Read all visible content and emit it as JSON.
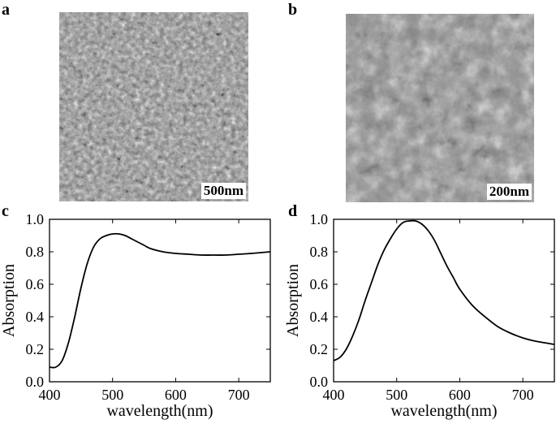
{
  "figure": {
    "panels": [
      {
        "letter": "a",
        "scale_label": "500nm"
      },
      {
        "letter": "b",
        "scale_label": "200nm"
      },
      {
        "letter": "c"
      },
      {
        "letter": "d"
      }
    ]
  },
  "chart_data": [
    {
      "type": "line",
      "panel": "c",
      "xlabel": "wavelength(nm)",
      "ylabel": "Absorption",
      "xlim": [
        400,
        750
      ],
      "ylim": [
        0.0,
        1.0
      ],
      "xticks": [
        400,
        500,
        600,
        700
      ],
      "yticks": [
        0.0,
        0.2,
        0.4,
        0.6,
        0.8,
        1.0
      ],
      "ytick_labels": [
        "0.0",
        "0.2",
        "0.4",
        "0.6",
        "0.8",
        "1.0"
      ],
      "grid": false,
      "series": [
        {
          "x": [
            400,
            410,
            420,
            430,
            440,
            450,
            460,
            470,
            480,
            490,
            500,
            510,
            520,
            530,
            540,
            550,
            560,
            580,
            600,
            620,
            640,
            660,
            680,
            700,
            720,
            750
          ],
          "y": [
            0.09,
            0.09,
            0.13,
            0.24,
            0.4,
            0.58,
            0.73,
            0.83,
            0.88,
            0.9,
            0.91,
            0.91,
            0.9,
            0.88,
            0.86,
            0.84,
            0.82,
            0.8,
            0.79,
            0.785,
            0.78,
            0.78,
            0.78,
            0.785,
            0.79,
            0.8
          ]
        }
      ]
    },
    {
      "type": "line",
      "panel": "d",
      "xlabel": "wavelength(nm)",
      "ylabel": "Absorption",
      "xlim": [
        400,
        750
      ],
      "ylim": [
        0.0,
        1.0
      ],
      "xticks": [
        400,
        500,
        600,
        700
      ],
      "yticks": [
        0.0,
        0.2,
        0.4,
        0.6,
        0.8,
        1.0
      ],
      "ytick_labels": [
        "0.0",
        "0.2",
        "0.4",
        "0.6",
        "0.8",
        "1.0"
      ],
      "grid": false,
      "series": [
        {
          "x": [
            400,
            410,
            420,
            430,
            440,
            450,
            460,
            470,
            480,
            490,
            500,
            510,
            520,
            530,
            540,
            550,
            560,
            570,
            580,
            590,
            600,
            620,
            640,
            660,
            680,
            700,
            720,
            750
          ],
          "y": [
            0.13,
            0.15,
            0.2,
            0.28,
            0.38,
            0.5,
            0.61,
            0.72,
            0.81,
            0.88,
            0.94,
            0.98,
            0.99,
            0.99,
            0.97,
            0.93,
            0.87,
            0.79,
            0.71,
            0.64,
            0.57,
            0.47,
            0.4,
            0.34,
            0.3,
            0.27,
            0.25,
            0.23
          ]
        }
      ]
    }
  ]
}
